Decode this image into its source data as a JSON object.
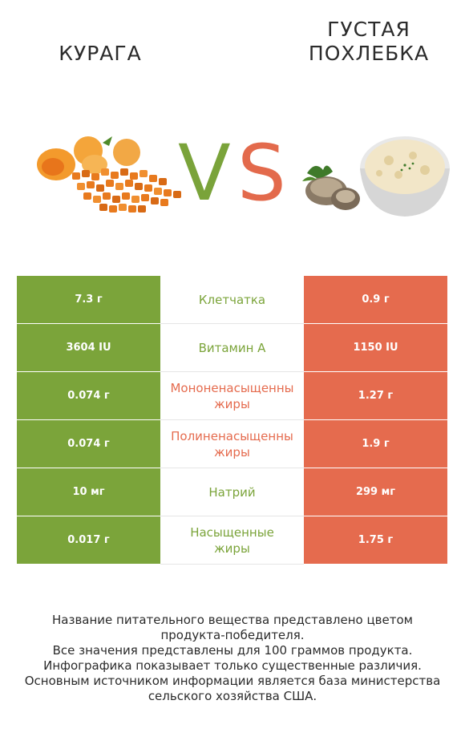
{
  "header": {
    "left_title": "КУРАГА",
    "right_title_line1": "ГУСТАЯ",
    "right_title_line2": "ПОХЛЕБКА",
    "vs_v": "V",
    "vs_s": "S"
  },
  "images": {
    "left_icon": "dried-apricots-image",
    "right_icon": "clam-chowder-image"
  },
  "colors": {
    "left_accent": "#7ba43a",
    "right_accent": "#e56b4e"
  },
  "rows": [
    {
      "left": "7.3 г",
      "name_line1": "Клетчатка",
      "name_line2": "",
      "right": "0.9 г",
      "winner": "left"
    },
    {
      "left": "3604 IU",
      "name_line1": "Витамин A",
      "name_line2": "",
      "right": "1150 IU",
      "winner": "left"
    },
    {
      "left": "0.074 г",
      "name_line1": "Мононенасыщенны",
      "name_line2": "жиры",
      "right": "1.27 г",
      "winner": "right"
    },
    {
      "left": "0.074 г",
      "name_line1": "Полиненасыщенны",
      "name_line2": "жиры",
      "right": "1.9 г",
      "winner": "right"
    },
    {
      "left": "10 мг",
      "name_line1": "Натрий",
      "name_line2": "",
      "right": "299 мг",
      "winner": "left"
    },
    {
      "left": "0.017 г",
      "name_line1": "Насыщенные",
      "name_line2": "жиры",
      "right": "1.75 г",
      "winner": "left"
    }
  ],
  "footer": {
    "line1": "Название питательного вещества представлено цветом",
    "line2": "продукта-победителя.",
    "line3": "Все значения представлены для 100 граммов продукта.",
    "line4": "Инфографика показывает только существенные различия.",
    "line5": "Основным источником информации является база министерства",
    "line6": "сельского хозяйства США."
  }
}
